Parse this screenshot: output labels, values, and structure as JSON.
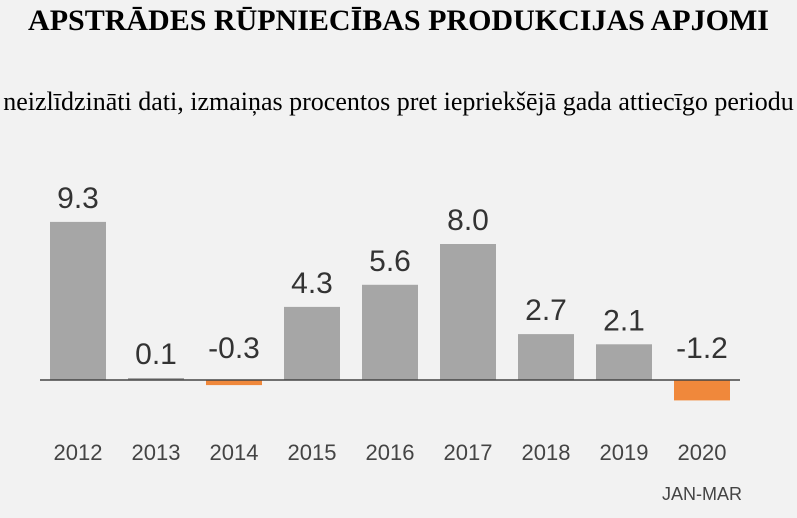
{
  "chart_data": {
    "type": "bar",
    "title": "APSTRĀDES RŪPNIECĪBAS PRODUKCIJAS APJOMI",
    "subtitle": "neizlīdzināti dati, izmaiņas procentos pret iepriekšējā gada attiecīgo periodu",
    "categories": [
      "2012",
      "2013",
      "2014",
      "2015",
      "2016",
      "2017",
      "2018",
      "2019",
      "2020"
    ],
    "category_sublabels": [
      "",
      "",
      "",
      "",
      "",
      "",
      "",
      "",
      "JAN-MAR"
    ],
    "values": [
      9.3,
      0.1,
      -0.3,
      4.3,
      5.6,
      8.0,
      2.7,
      2.1,
      -1.2
    ],
    "value_labels": [
      "9.3",
      "0.1",
      "-0.3",
      "4.3",
      "5.6",
      "8.0",
      "2.7",
      "2.1",
      "-1.2"
    ],
    "colors": {
      "positive": "#a6a6a6",
      "negative": "#f0883b",
      "baseline": "#444444"
    },
    "grid": false,
    "xlabel": "",
    "ylabel": ""
  }
}
